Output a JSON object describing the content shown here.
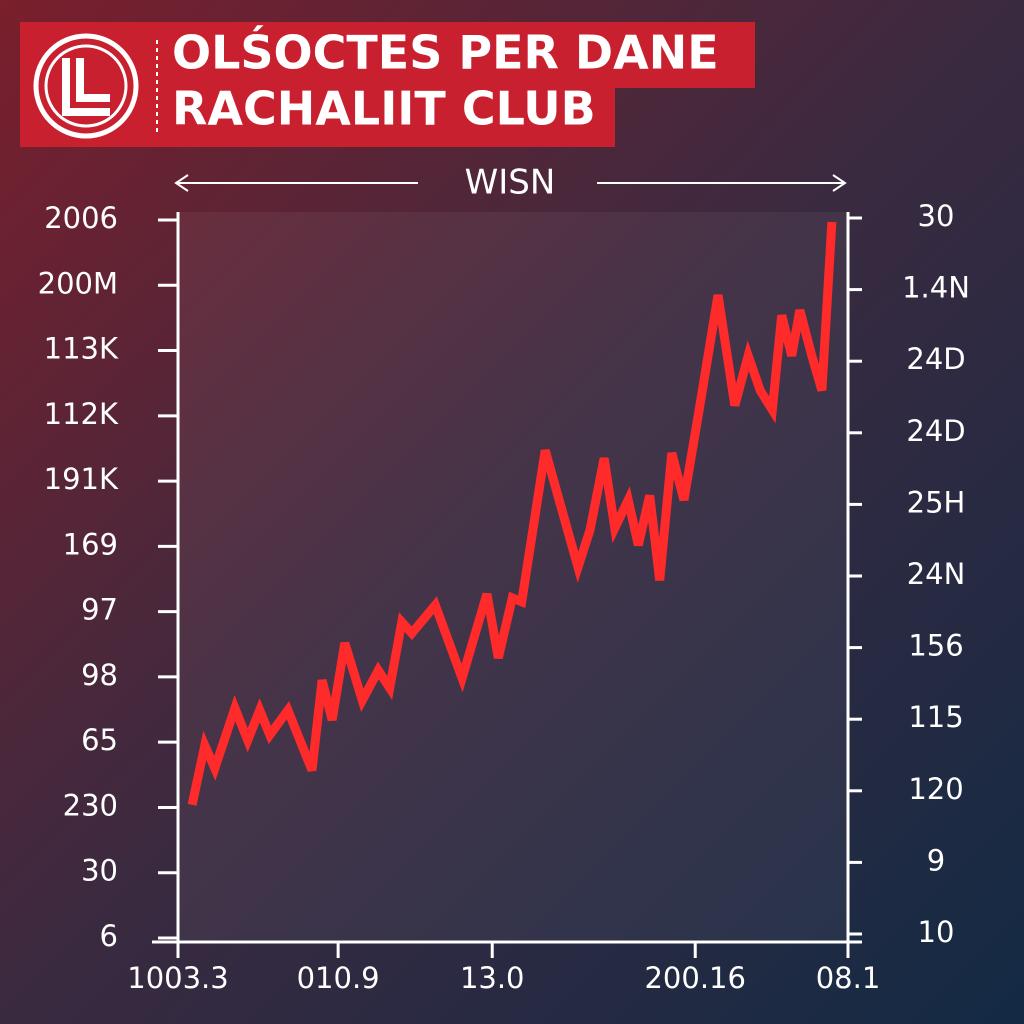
{
  "chart_data": {
    "type": "line",
    "title": [
      "OLŚOCTES PER DANE",
      "RACHALIIT CLUB"
    ],
    "x_axis_label": "WISN",
    "color": "#ff2a2a",
    "x": [
      2.1,
      4.0,
      5.5,
      8.5,
      10.4,
      12.2,
      13.7,
      16.4,
      20.0,
      21.5,
      23.0,
      24.9,
      27.5,
      29.9,
      31.6,
      33.4,
      34.9,
      38.4,
      42.4,
      46.1,
      47.8,
      49.9,
      51.3,
      54.8,
      59.7,
      61.5,
      63.6,
      65.2,
      67.2,
      68.7,
      70.4,
      71.9,
      73.7,
      75.5,
      77.9,
      80.6,
      83.1,
      85.1,
      86.9,
      88.7,
      90.1,
      91.6,
      92.8,
      94.6,
      96.1,
      97.6
    ],
    "values": [
      2.04,
      2.95,
      2.6,
      3.52,
      3.03,
      3.49,
      3.11,
      3.49,
      2.57,
      3.95,
      3.34,
      4.52,
      3.64,
      4.1,
      3.83,
      4.84,
      4.67,
      5.1,
      3.98,
      5.27,
      4.29,
      5.21,
      5.15,
      7.47,
      5.68,
      6.25,
      7.35,
      6.28,
      6.71,
      6.02,
      6.78,
      5.48,
      7.43,
      6.71,
      8.16,
      9.85,
      8.16,
      8.92,
      8.39,
      8.09,
      9.54,
      8.92,
      9.62,
      8.92,
      8.39,
      10.97
    ],
    "xlim": [
      0,
      100
    ],
    "xticks": [
      {
        "value": 0,
        "label": "1003.3"
      },
      {
        "value": 23.9,
        "label": "010.9"
      },
      {
        "value": 46.9,
        "label": "13.0"
      },
      {
        "value": 77.2,
        "label": "200.16"
      },
      {
        "value": 100,
        "label": "08.1"
      }
    ],
    "ylim": [
      0,
      11
    ],
    "yticks": [
      {
        "value": 11,
        "label": "2006"
      },
      {
        "value": 10,
        "label": "200M"
      },
      {
        "value": 9,
        "label": "113K"
      },
      {
        "value": 8,
        "label": "112K"
      },
      {
        "value": 7,
        "label": "191K"
      },
      {
        "value": 6,
        "label": "169"
      },
      {
        "value": 5,
        "label": "97"
      },
      {
        "value": 4,
        "label": "98"
      },
      {
        "value": 3,
        "label": "65"
      },
      {
        "value": 2,
        "label": "230"
      },
      {
        "value": 1,
        "label": "30"
      },
      {
        "value": 0,
        "label": "6"
      }
    ],
    "y2lim": [
      0,
      10
    ],
    "y2ticks": [
      {
        "value": 10,
        "label": "30"
      },
      {
        "value": 9,
        "label": "1.4N"
      },
      {
        "value": 8,
        "label": "24D"
      },
      {
        "value": 7,
        "label": "24D"
      },
      {
        "value": 6,
        "label": "25H"
      },
      {
        "value": 5,
        "label": "24N"
      },
      {
        "value": 4,
        "label": "156"
      },
      {
        "value": 3,
        "label": "115"
      },
      {
        "value": 2,
        "label": "120"
      },
      {
        "value": 1,
        "label": "9"
      },
      {
        "value": 0,
        "label": "10"
      }
    ]
  }
}
